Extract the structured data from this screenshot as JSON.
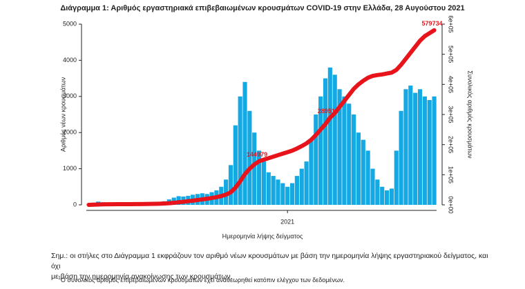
{
  "chart_data": {
    "type": "bar-line",
    "title": "Διάγραμμα 1: Αριθμός εργαστηριακά επιβεβαιωμένων κρουσμάτων COVID-19 στην Ελλάδα, 28 Αυγούστου 2021",
    "xlabel": "Ημερομηνία λήψης δείγματος",
    "ylabel": "Αριθμός νέων κρουσμάτων",
    "y2label": "Συνολικός αριθμός κρουσμάτων",
    "categories": [
      null,
      null,
      null,
      null,
      null,
      null,
      null,
      null,
      null,
      null,
      null,
      null,
      null,
      null,
      null,
      null,
      null,
      null,
      null,
      null,
      null,
      null,
      null,
      null,
      null,
      null,
      null,
      null,
      null,
      null,
      null,
      null,
      null,
      null,
      null,
      null,
      null,
      null,
      null,
      null,
      null,
      null,
      "2021",
      null,
      null,
      null,
      null,
      null,
      null,
      null,
      null,
      null,
      null,
      null,
      null,
      null,
      null,
      null,
      null,
      null,
      null,
      null,
      null,
      null,
      null,
      null,
      null,
      null,
      null,
      null,
      null,
      null,
      null,
      null
    ],
    "series": [
      {
        "name": "Νέα κρούσματα",
        "type": "bar",
        "color": "#14a9e3",
        "values": [
          20,
          60,
          90,
          70,
          40,
          20,
          15,
          10,
          10,
          10,
          15,
          20,
          25,
          30,
          40,
          60,
          100,
          150,
          200,
          240,
          230,
          250,
          280,
          300,
          320,
          300,
          350,
          400,
          500,
          700,
          1100,
          2200,
          3000,
          3400,
          2600,
          2000,
          1500,
          1200,
          900,
          800,
          700,
          600,
          500,
          600,
          800,
          1000,
          1200,
          1800,
          2500,
          3000,
          3500,
          3800,
          3600,
          3200,
          3000,
          2800,
          2500,
          2000,
          1800,
          1500,
          1000,
          700,
          500,
          400,
          450,
          1500,
          2600,
          3200,
          3300,
          3100,
          3200,
          3000,
          2900,
          3000
        ]
      },
      {
        "name": "Συνολικά κρούσματα",
        "type": "line",
        "axis": "y2",
        "color": "#e8141b",
        "values": [
          140,
          560,
          1190,
          1680,
          1960,
          2100,
          2205,
          2275,
          2345,
          2415,
          2520,
          2660,
          2835,
          3045,
          3325,
          3745,
          4445,
          5495,
          6895,
          8575,
          10185,
          11935,
          13895,
          15995,
          18235,
          20335,
          22785,
          25585,
          29085,
          33985,
          41685,
          57085,
          78085,
          101885,
          120085,
          134085,
          144979,
          150000,
          155000,
          160000,
          165000,
          170000,
          175000,
          180000,
          187000,
          195000,
          204000,
          216000,
          232000,
          250000,
          268000,
          289515,
          305000,
          325000,
          345000,
          365000,
          385000,
          400000,
          412000,
          422000,
          428000,
          431000,
          433000,
          436000,
          439000,
          448000,
          465000,
          485000,
          505000,
          525000,
          545000,
          560000,
          570000,
          579734
        ],
        "value_labels": [
          null,
          null,
          null,
          null,
          null,
          null,
          null,
          null,
          null,
          null,
          null,
          null,
          null,
          null,
          null,
          null,
          null,
          null,
          null,
          null,
          null,
          null,
          null,
          null,
          null,
          null,
          null,
          null,
          null,
          null,
          null,
          null,
          null,
          null,
          null,
          null,
          "144979",
          null,
          null,
          null,
          null,
          null,
          null,
          null,
          null,
          null,
          null,
          null,
          null,
          null,
          null,
          "289515",
          null,
          null,
          null,
          null,
          null,
          null,
          null,
          null,
          null,
          null,
          null,
          null,
          null,
          null,
          null,
          null,
          null,
          null,
          null,
          null,
          null,
          "579734"
        ]
      }
    ],
    "ylim": [
      0,
      5000
    ],
    "yticks": [
      0,
      1000,
      2000,
      3000,
      4000,
      5000
    ],
    "y2lim": [
      0,
      600000
    ],
    "y2ticks": [
      {
        "value": 0,
        "label": "0e+00"
      },
      {
        "value": 100000,
        "label": "1e+05"
      },
      {
        "value": 200000,
        "label": "2e+05"
      },
      {
        "value": 300000,
        "label": "3e+05"
      },
      {
        "value": 400000,
        "label": "4e+05"
      },
      {
        "value": 500000,
        "label": "5e+05"
      },
      {
        "value": 600000,
        "label": "6e+05"
      }
    ]
  },
  "note": {
    "lines": [
      "Σημ.: οι στήλες στο Διάγραμμα 1 εκφράζουν τον αριθμό νέων κρουσμάτων με βάση την ημερομηνία λήψης εργαστηριακού δείγματος, και όχι",
      "με βάση την ημερομηνία ανακοίνωσης των κρουσμάτων."
    ]
  },
  "footnote": {
    "marker": "1",
    "text": "Ο συνολικός αριθμός επιβεβαιωμένων κρουσμάτων έχει αναθεωρηθεί κατόπιν ελέγχου των δεδομένων."
  }
}
